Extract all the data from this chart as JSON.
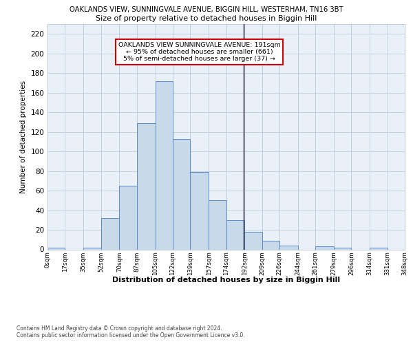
{
  "title": "OAKLANDS VIEW, SUNNINGVALE AVENUE, BIGGIN HILL, WESTERHAM, TN16 3BT",
  "subtitle": "Size of property relative to detached houses in Biggin Hill",
  "xlabel": "Distribution of detached houses by size in Biggin Hill",
  "ylabel": "Number of detached properties",
  "bar_color": "#c9d9ec",
  "bar_edge_color": "#5b8ac5",
  "grid_color": "#c0c8d8",
  "background_color": "#eaf0f8",
  "vline_x": 191,
  "vline_color": "#1a1a2e",
  "bin_edges": [
    0,
    17,
    35,
    52,
    70,
    87,
    105,
    122,
    139,
    157,
    174,
    192,
    209,
    226,
    244,
    261,
    279,
    296,
    314,
    331,
    348
  ],
  "bar_heights": [
    2,
    0,
    2,
    32,
    65,
    129,
    172,
    113,
    79,
    50,
    30,
    18,
    9,
    4,
    0,
    3,
    2,
    0,
    2,
    0
  ],
  "annotation_text": "OAKLANDS VIEW SUNNINGVALE AVENUE: 191sqm\n← 95% of detached houses are smaller (661)\n5% of semi-detached houses are larger (37) →",
  "annotation_box_color": "#ffffff",
  "annotation_box_edge": "#cc0000",
  "footer": "Contains HM Land Registry data © Crown copyright and database right 2024.\nContains public sector information licensed under the Open Government Licence v3.0.",
  "ylim": [
    0,
    230
  ],
  "yticks": [
    0,
    20,
    40,
    60,
    80,
    100,
    120,
    140,
    160,
    180,
    200,
    220
  ],
  "tick_labels": [
    "0sqm",
    "17sqm",
    "35sqm",
    "52sqm",
    "70sqm",
    "87sqm",
    "105sqm",
    "122sqm",
    "139sqm",
    "157sqm",
    "174sqm",
    "192sqm",
    "209sqm",
    "226sqm",
    "244sqm",
    "261sqm",
    "279sqm",
    "296sqm",
    "314sqm",
    "331sqm",
    "348sqm"
  ]
}
